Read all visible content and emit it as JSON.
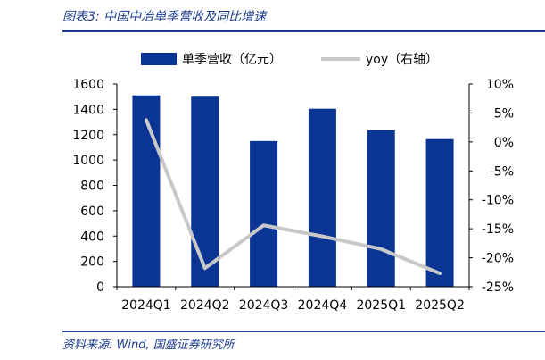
{
  "figure": {
    "title": "图表3:  中国中冶单季营收及同比增速",
    "source": "资料来源:  Wind,  国盛证券研究所"
  },
  "chart_data": {
    "type": "bar",
    "categories": [
      "2024Q1",
      "2024Q2",
      "2024Q3",
      "2024Q4",
      "2025Q1",
      "2025Q2"
    ],
    "series": [
      {
        "name": "单季营收（亿元）",
        "type": "bar",
        "axis": "left",
        "color": "#0a3594",
        "values": [
          1510,
          1500,
          1150,
          1405,
          1235,
          1165
        ]
      },
      {
        "name": "yoy（右轴）",
        "type": "line",
        "axis": "right",
        "color": "#c8c8c8",
        "values": [
          3.8,
          -21.8,
          -14.4,
          -16.3,
          -18.5,
          -22.7
        ]
      }
    ],
    "left_axis": {
      "min": 0,
      "max": 1600,
      "step": 200,
      "tick_labels": [
        "0",
        "200",
        "400",
        "600",
        "800",
        "1000",
        "1200",
        "1400",
        "1600"
      ]
    },
    "right_axis": {
      "min": -25,
      "max": 10,
      "step": 5,
      "unit": "%",
      "tick_labels": [
        "-25%",
        "-20%",
        "-15%",
        "-10%",
        "-5%",
        "0%",
        "5%",
        "10%"
      ]
    },
    "legend_position": "top",
    "grid": false
  }
}
